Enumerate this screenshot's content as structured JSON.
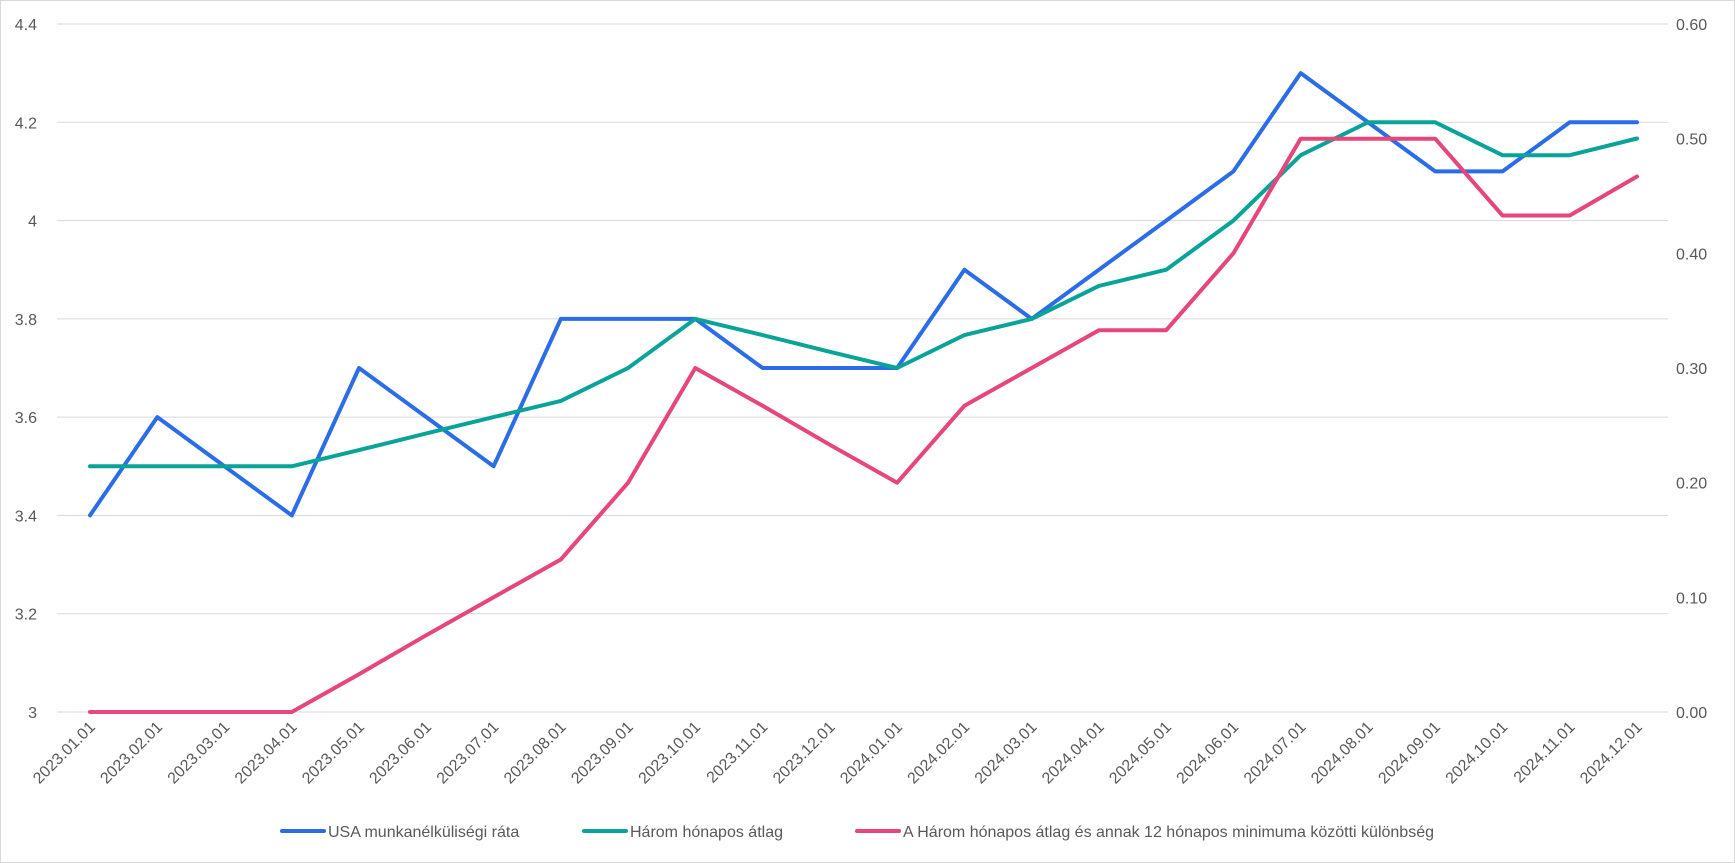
{
  "chart_data": {
    "type": "line",
    "title": "",
    "xlabel": "",
    "ylabel": "",
    "categories": [
      "2023.01.01",
      "2023.02.01",
      "2023.03.01",
      "2023.04.01",
      "2023.05.01",
      "2023.06.01",
      "2023.07.01",
      "2023.08.01",
      "2023.09.01",
      "2023.10.01",
      "2023.11.01",
      "2023.12.01",
      "2024.01.01",
      "2024.02.01",
      "2024.03.01",
      "2024.04.01",
      "2024.05.01",
      "2024.06.01",
      "2024.07.01",
      "2024.08.01",
      "2024.09.01",
      "2024.10.01",
      "2024.11.01",
      "2024.12.01"
    ],
    "y_left": {
      "min": 3,
      "max": 4.4,
      "ticks": [
        "3",
        "3.2",
        "3.4",
        "3.6",
        "3.8",
        "4",
        "4.2",
        "4.4"
      ]
    },
    "y_right": {
      "min": 0,
      "max": 0.6,
      "ticks": [
        "0.00",
        "0.10",
        "0.20",
        "0.30",
        "0.40",
        "0.50",
        "0.60"
      ]
    },
    "grid": true,
    "legend": "bottom",
    "series": [
      {
        "name": "USA munkanélküliségi ráta",
        "axis": "left",
        "color": "#2a6de6",
        "values": [
          3.4,
          3.6,
          3.5,
          3.4,
          3.7,
          3.6,
          3.5,
          3.8,
          3.8,
          3.8,
          3.7,
          3.7,
          3.7,
          3.9,
          3.8,
          3.9,
          4.0,
          4.1,
          4.3,
          4.2,
          4.1,
          4.1,
          4.2,
          4.2
        ]
      },
      {
        "name": "Három hónapos átlag",
        "axis": "left",
        "color": "#0aa39a",
        "values": [
          3.5,
          3.5,
          3.5,
          3.5,
          3.533,
          3.567,
          3.6,
          3.633,
          3.7,
          3.8,
          3.767,
          3.733,
          3.7,
          3.767,
          3.8,
          3.867,
          3.9,
          4.0,
          4.133,
          4.2,
          4.2,
          4.133,
          4.133,
          4.167
        ]
      },
      {
        "name": "A Három hónapos átlag és annak 12 hónapos minimuma közötti különbség",
        "axis": "right",
        "color": "#e6467a",
        "values": [
          0.0,
          0.0,
          0.0,
          0.0,
          0.033,
          0.067,
          0.1,
          0.133,
          0.2,
          0.3,
          0.267,
          0.233,
          0.2,
          0.267,
          0.3,
          0.333,
          0.333,
          0.4,
          0.5,
          0.5,
          0.5,
          0.433,
          0.433,
          0.467
        ]
      }
    ]
  }
}
